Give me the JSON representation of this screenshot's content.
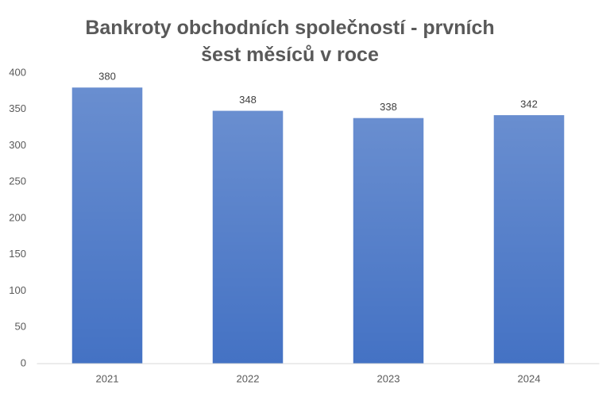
{
  "chart_data": {
    "type": "bar",
    "title": "Bankroty obchodních společností - prvních šest měsíců v roce",
    "categories": [
      "2021",
      "2022",
      "2023",
      "2024"
    ],
    "values": [
      380,
      348,
      338,
      342
    ],
    "color": "#4472c4",
    "ylim": [
      0,
      400
    ],
    "yticks": [
      0,
      50,
      100,
      150,
      200,
      250,
      300,
      350,
      400
    ],
    "grid": false
  }
}
